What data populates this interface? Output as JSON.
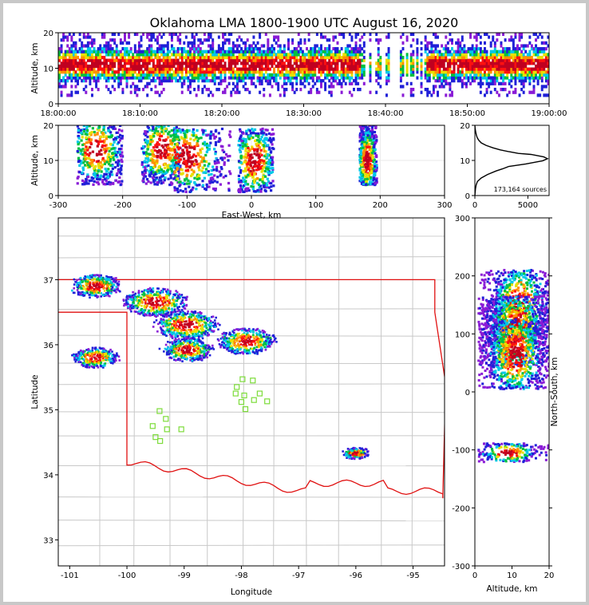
{
  "title": "Oklahoma LMA 1800-1900 UTC August 16, 2020",
  "source_count": "173,164 sources",
  "colors": {
    "background": "#c8c8c8",
    "state_border": "#e01010",
    "county_line": "#c8c8c8",
    "station": "#7ddc3a",
    "axis": "#000000"
  },
  "chart_data": [
    {
      "id": "time_height",
      "type": "heatmap",
      "xlabel": "",
      "ylabel": "Altitude, km",
      "xlim": [
        "18:00:00",
        "19:00:00"
      ],
      "ylim": [
        0,
        20
      ],
      "xticks": [
        "18:00:00",
        "18:10:00",
        "18:20:00",
        "18:30:00",
        "18:40:00",
        "18:50:00",
        "19:00:00"
      ],
      "yticks": [
        0,
        10,
        20
      ],
      "altitude_band_km": [
        2,
        20
      ],
      "peak_altitude_km": 11,
      "low_activity_intervals": [
        [
          "18:37:00",
          "18:45:00"
        ]
      ]
    },
    {
      "id": "east_west_altitude",
      "type": "heatmap",
      "xlabel": "East-West, km",
      "ylabel": "Altitude, km",
      "xlim": [
        -300,
        300
      ],
      "ylim": [
        0,
        20
      ],
      "xticks": [
        -300,
        -200,
        -100,
        0,
        100,
        200,
        300
      ],
      "yticks": [
        0,
        10,
        20
      ],
      "clusters": [
        {
          "x": -240,
          "x_range": [
            -270,
            -200
          ],
          "z": 13,
          "z_range": [
            3,
            20
          ]
        },
        {
          "x": -140,
          "x_range": [
            -170,
            -110
          ],
          "z": 13,
          "z_range": [
            3,
            20
          ]
        },
        {
          "x": -100,
          "x_range": [
            -120,
            -30
          ],
          "z": 11,
          "z_range": [
            1,
            19
          ]
        },
        {
          "x": 5,
          "x_range": [
            -20,
            35
          ],
          "z": 10,
          "z_range": [
            1,
            19
          ]
        },
        {
          "x": 180,
          "x_range": [
            168,
            195
          ],
          "z": 10,
          "z_range": [
            3,
            20
          ]
        }
      ]
    },
    {
      "id": "altitude_histogram",
      "type": "line",
      "xlabel": "",
      "ylabel": "",
      "xlim": [
        0,
        7000
      ],
      "ylim": [
        0,
        20
      ],
      "xticks": [
        0,
        5000
      ],
      "yticks": [
        0,
        10,
        20
      ],
      "points": [
        {
          "x": 0,
          "y": 0
        },
        {
          "x": 60,
          "y": 2
        },
        {
          "x": 120,
          "y": 3
        },
        {
          "x": 240,
          "y": 4
        },
        {
          "x": 600,
          "y": 5
        },
        {
          "x": 1200,
          "y": 6
        },
        {
          "x": 2000,
          "y": 7
        },
        {
          "x": 2600,
          "y": 7.6
        },
        {
          "x": 3200,
          "y": 8.3
        },
        {
          "x": 4800,
          "y": 9
        },
        {
          "x": 5700,
          "y": 9.5
        },
        {
          "x": 6400,
          "y": 9.9
        },
        {
          "x": 6850,
          "y": 10.5
        },
        {
          "x": 6500,
          "y": 11
        },
        {
          "x": 5300,
          "y": 11.7
        },
        {
          "x": 4100,
          "y": 12
        },
        {
          "x": 3200,
          "y": 12.5
        },
        {
          "x": 2400,
          "y": 13
        },
        {
          "x": 1700,
          "y": 13.6
        },
        {
          "x": 1050,
          "y": 14.3
        },
        {
          "x": 600,
          "y": 15
        },
        {
          "x": 380,
          "y": 15.7
        },
        {
          "x": 230,
          "y": 16.4
        },
        {
          "x": 140,
          "y": 17.2
        },
        {
          "x": 80,
          "y": 18
        },
        {
          "x": 30,
          "y": 19
        },
        {
          "x": 0,
          "y": 20
        }
      ]
    },
    {
      "id": "plan_view",
      "type": "heatmap",
      "xlabel": "Longitude",
      "ylabel": "Latitude",
      "xlim": [
        -101.2,
        -94.45
      ],
      "ylim": [
        32.6,
        37.95
      ],
      "xticks": [
        -101,
        -100,
        -99,
        -98,
        -97,
        -96,
        -95
      ],
      "yticks": [
        33,
        34,
        35,
        36,
        37
      ],
      "clusters": [
        {
          "lon": -100.55,
          "lat": 35.8,
          "size": 0.35
        },
        {
          "lon": -100.55,
          "lat": 36.9,
          "size": 0.4
        },
        {
          "lon": -99.5,
          "lat": 36.65,
          "size": 0.5
        },
        {
          "lon": -98.95,
          "lat": 36.3,
          "size": 0.5
        },
        {
          "lon": -98.95,
          "lat": 35.92,
          "size": 0.4
        },
        {
          "lon": -97.9,
          "lat": 36.05,
          "size": 0.45
        },
        {
          "lon": -96.0,
          "lat": 34.33,
          "size": 0.2
        }
      ],
      "stations": [
        {
          "lon": -97.98,
          "lat": 35.47
        },
        {
          "lon": -97.8,
          "lat": 35.45
        },
        {
          "lon": -98.08,
          "lat": 35.35
        },
        {
          "lon": -98.1,
          "lat": 35.25
        },
        {
          "lon": -97.95,
          "lat": 35.22
        },
        {
          "lon": -97.68,
          "lat": 35.25
        },
        {
          "lon": -98.0,
          "lat": 35.12
        },
        {
          "lon": -97.78,
          "lat": 35.15
        },
        {
          "lon": -97.55,
          "lat": 35.13
        },
        {
          "lon": -97.93,
          "lat": 35.01
        },
        {
          "lon": -99.43,
          "lat": 34.98
        },
        {
          "lon": -99.32,
          "lat": 34.86
        },
        {
          "lon": -99.55,
          "lat": 34.75
        },
        {
          "lon": -99.3,
          "lat": 34.7
        },
        {
          "lon": -99.05,
          "lat": 34.7
        },
        {
          "lon": -99.5,
          "lat": 34.58
        },
        {
          "lon": -99.42,
          "lat": 34.52
        }
      ]
    },
    {
      "id": "altitude_north_south",
      "type": "heatmap",
      "xlabel": "Altitude, km",
      "ylabel": "North-South, km",
      "xlim": [
        0,
        20
      ],
      "ylim": [
        -300,
        300
      ],
      "xticks": [
        0,
        10,
        20
      ],
      "yticks": [
        -300,
        -200,
        -100,
        0,
        100,
        200,
        300
      ],
      "clusters": [
        {
          "z": 12,
          "y": 150,
          "size": 30
        },
        {
          "z": 11,
          "y": 105,
          "size": 30
        },
        {
          "z": 11,
          "y": 65,
          "size": 30
        },
        {
          "z": 9,
          "y": -105,
          "size": 8
        }
      ]
    }
  ]
}
